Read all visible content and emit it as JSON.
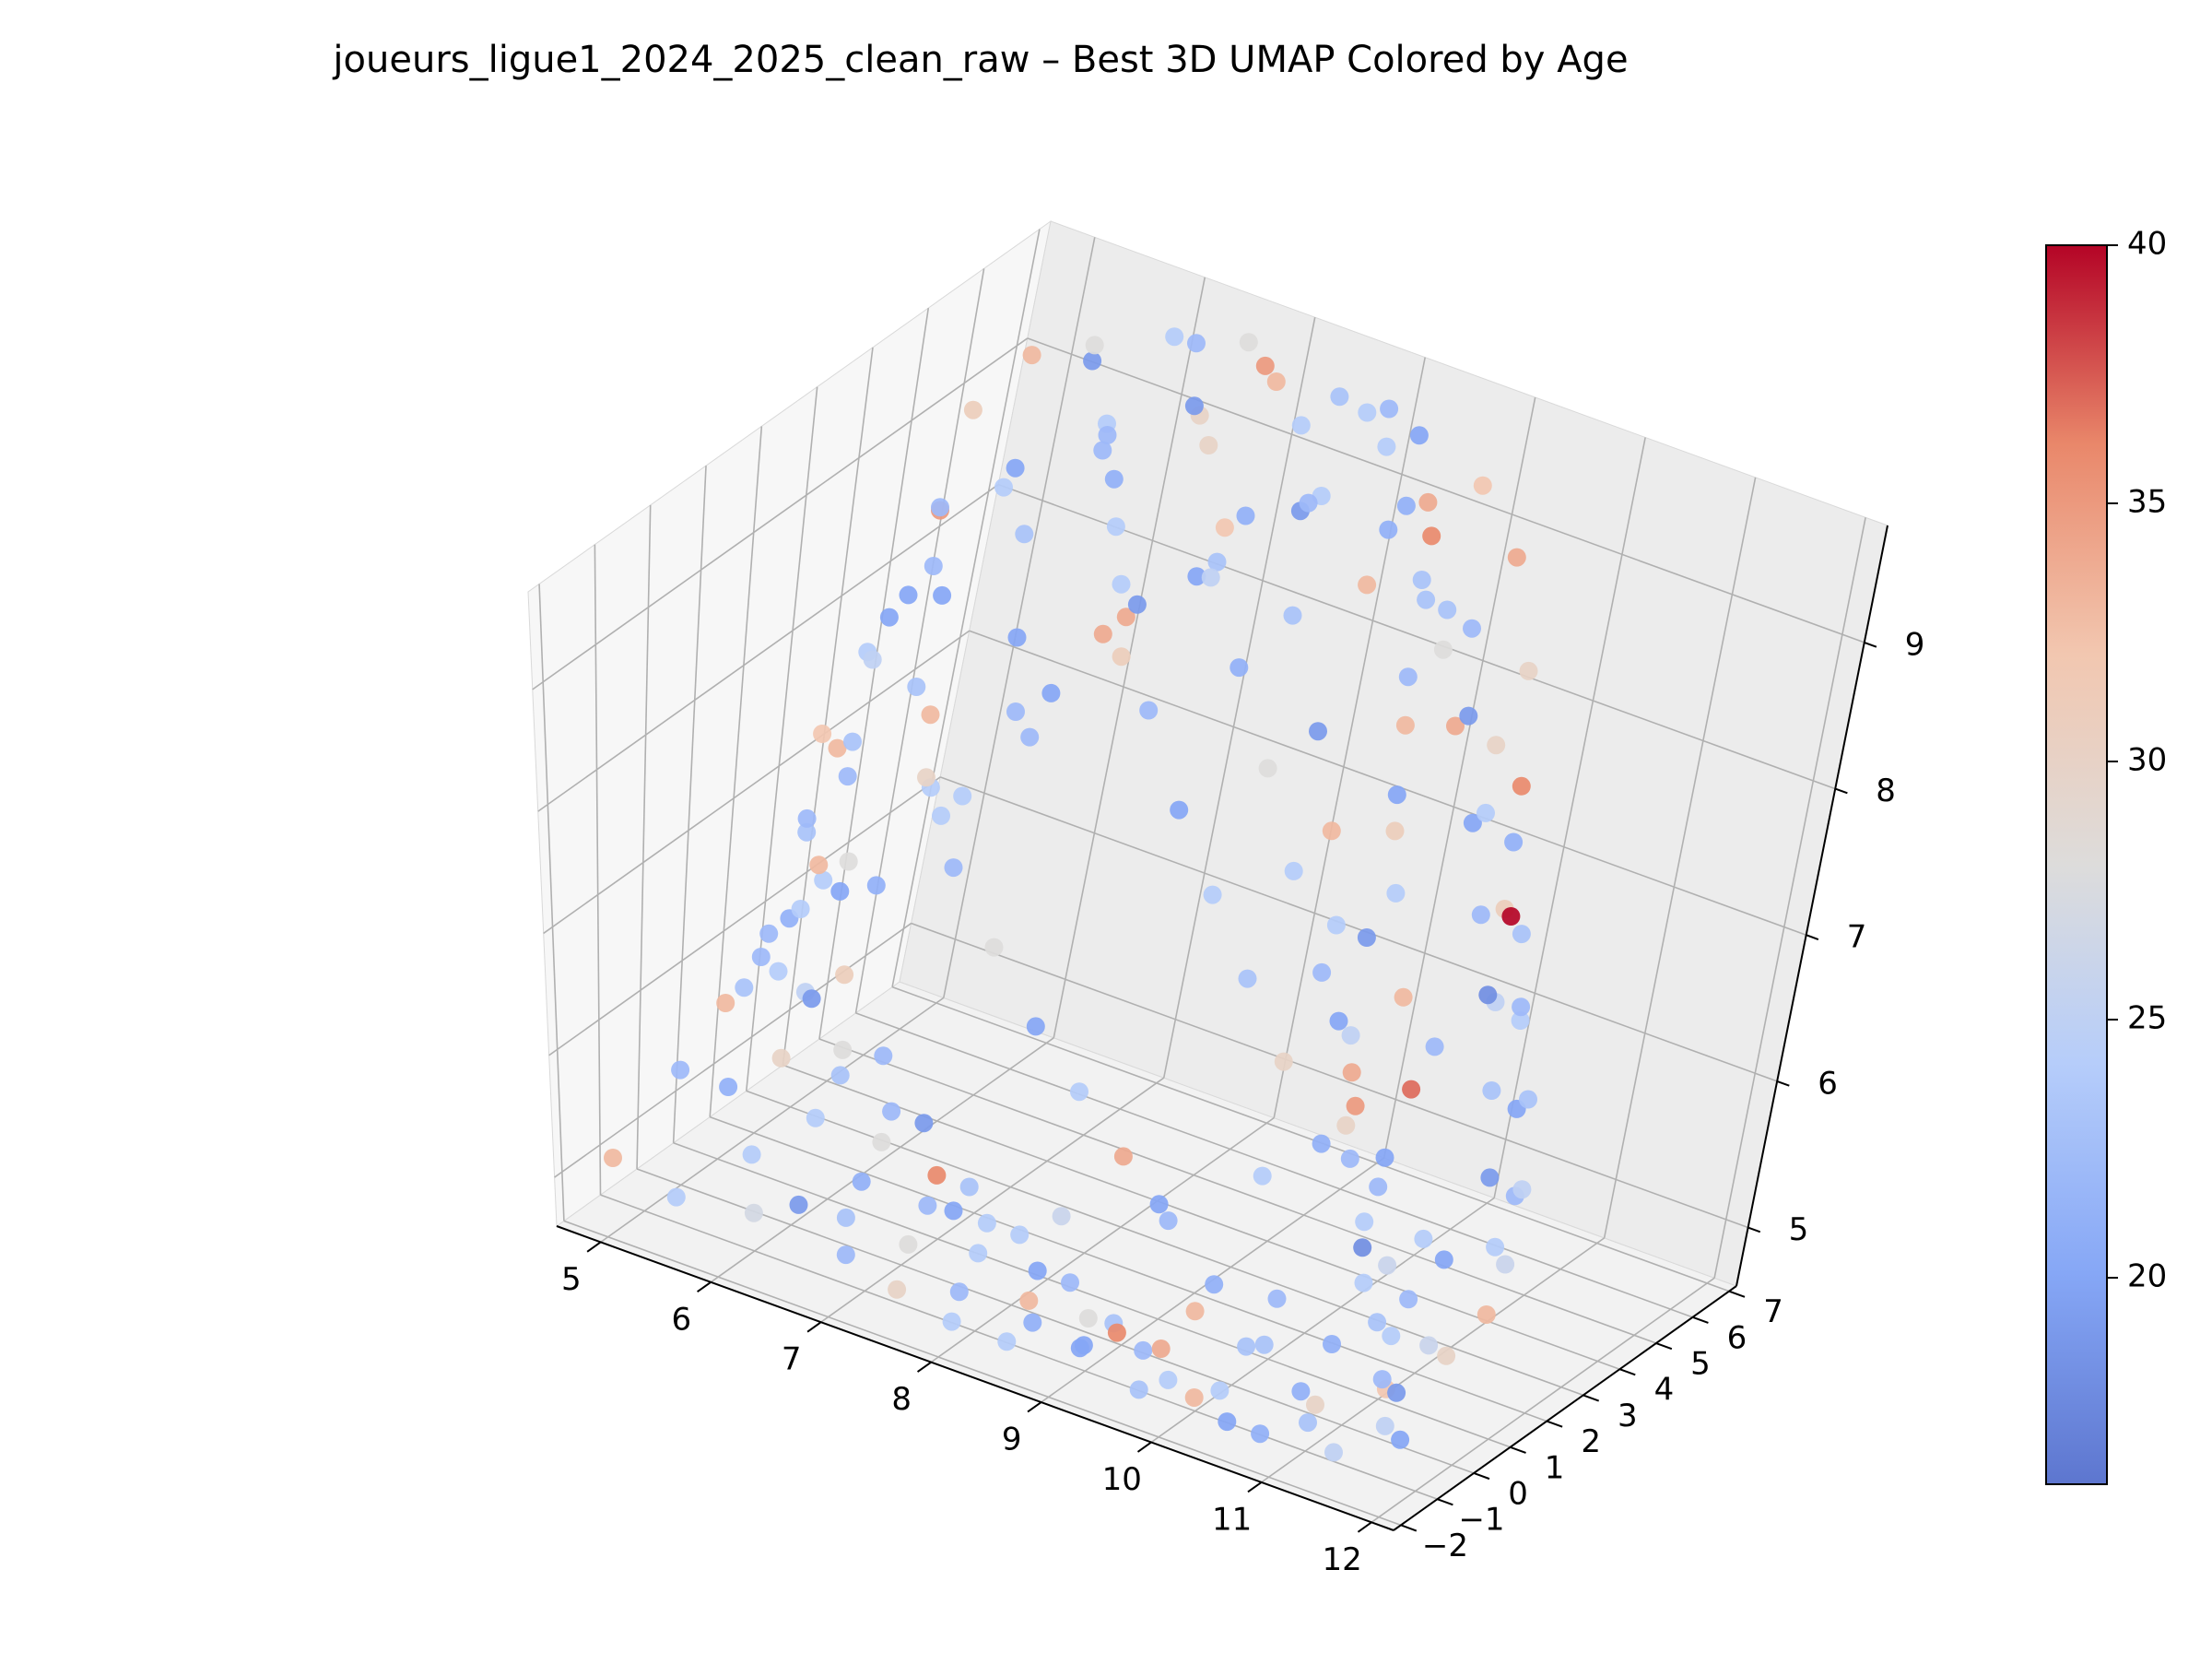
{
  "chart_data": {
    "type": "scatter",
    "projection": "3d",
    "title": "joueurs_ligue1_2024_2025_clean_raw – Best 3D UMAP Colored by Age",
    "xlabel": "",
    "ylabel": "",
    "zlabel": "",
    "x_ticks": [
      "5",
      "6",
      "7",
      "8",
      "9",
      "10",
      "11",
      "12"
    ],
    "y_ticks": [
      "−2",
      "−1",
      "0",
      "1",
      "2",
      "3",
      "4",
      "5",
      "6",
      "7"
    ],
    "z_ticks": [
      "5",
      "6",
      "7",
      "8",
      "9"
    ],
    "xlim": [
      4.6,
      12.2
    ],
    "ylim": [
      -2.2,
      7.2
    ],
    "zlim": [
      4.6,
      9.8
    ],
    "grid": true,
    "colormap": "coolwarm",
    "colorbar": {
      "min": 16,
      "max": 40,
      "ticks": [
        "20",
        "25",
        "30",
        "35",
        "40"
      ]
    },
    "points": [
      [
        5.2,
        4.8,
        9.3,
        31
      ],
      [
        5.4,
        3.9,
        8.9,
        22
      ],
      [
        5.6,
        2.6,
        8.5,
        20
      ],
      [
        5.9,
        1.3,
        8.0,
        23
      ],
      [
        6.1,
        0.2,
        7.4,
        33
      ],
      [
        6.0,
        -0.8,
        6.9,
        22
      ],
      [
        5.3,
        5.6,
        9.5,
        33
      ],
      [
        5.7,
        5.9,
        9.6,
        28
      ],
      [
        6.4,
        6.3,
        9.7,
        22
      ],
      [
        6.9,
        6.6,
        9.6,
        35
      ],
      [
        7.5,
        6.8,
        9.5,
        23
      ],
      [
        8.2,
        6.9,
        9.4,
        20
      ],
      [
        8.9,
        6.7,
        9.3,
        32
      ],
      [
        9.5,
        6.2,
        9.1,
        34
      ],
      [
        10.0,
        5.6,
        8.6,
        30
      ],
      [
        10.4,
        4.8,
        8.1,
        36
      ],
      [
        10.8,
        3.9,
        7.5,
        40
      ],
      [
        10.9,
        3.3,
        7.1,
        18
      ],
      [
        10.7,
        2.7,
        6.8,
        22
      ],
      [
        10.3,
        1.8,
        6.3,
        30
      ],
      [
        9.8,
        1.2,
        5.9,
        24
      ],
      [
        9.1,
        0.6,
        5.6,
        20
      ],
      [
        8.4,
        0.1,
        5.4,
        26
      ],
      [
        7.6,
        -0.4,
        5.3,
        20
      ],
      [
        6.8,
        -0.9,
        5.1,
        23
      ],
      [
        6.1,
        -1.3,
        5.0,
        27
      ],
      [
        5.5,
        -1.6,
        5.0,
        24
      ],
      [
        5.0,
        -1.8,
        5.2,
        33
      ],
      [
        5.3,
        -0.9,
        5.8,
        22
      ],
      [
        5.8,
        0.1,
        6.5,
        24
      ],
      [
        6.3,
        1.0,
        7.1,
        21
      ],
      [
        6.7,
        1.8,
        7.7,
        24
      ],
      [
        7.0,
        2.8,
        8.3,
        20
      ],
      [
        7.3,
        3.7,
        8.8,
        19
      ],
      [
        7.6,
        4.6,
        9.2,
        32
      ],
      [
        8.0,
        5.3,
        9.3,
        22
      ],
      [
        8.6,
        5.6,
        9.2,
        21
      ],
      [
        9.1,
        5.4,
        8.9,
        23
      ],
      [
        9.4,
        4.6,
        8.3,
        33
      ],
      [
        9.7,
        3.9,
        7.8,
        31
      ],
      [
        9.9,
        3.0,
        7.3,
        19
      ],
      [
        10.1,
        2.3,
        6.8,
        25
      ],
      [
        10.5,
        1.4,
        6.2,
        22
      ],
      [
        10.9,
        0.7,
        5.8,
        18
      ],
      [
        11.3,
        0.0,
        5.5,
        23
      ],
      [
        11.6,
        -0.6,
        5.2,
        32
      ],
      [
        11.9,
        -1.1,
        5.0,
        20
      ],
      [
        11.5,
        -1.7,
        4.9,
        25
      ],
      [
        10.9,
        -1.9,
        4.9,
        21
      ],
      [
        10.2,
        -1.6,
        4.9,
        33
      ],
      [
        9.6,
        -1.2,
        5.0,
        22
      ],
      [
        9.0,
        -0.9,
        5.0,
        28
      ],
      [
        8.4,
        -0.5,
        5.1,
        20
      ],
      [
        7.8,
        -0.1,
        5.2,
        24
      ],
      [
        7.2,
        0.3,
        5.3,
        36
      ],
      [
        6.6,
        0.8,
        5.5,
        22
      ],
      [
        6.0,
        1.2,
        5.7,
        28
      ],
      [
        5.5,
        1.6,
        5.9,
        25
      ],
      [
        5.1,
        2.2,
        6.2,
        21
      ],
      [
        4.9,
        3.0,
        6.6,
        23
      ],
      [
        4.8,
        3.8,
        7.0,
        33
      ],
      [
        4.7,
        4.5,
        7.5,
        24
      ],
      [
        4.9,
        5.2,
        8.0,
        22
      ],
      [
        5.2,
        5.9,
        8.6,
        20
      ],
      [
        5.8,
        6.2,
        9.0,
        24
      ],
      [
        6.5,
        6.4,
        9.2,
        30
      ],
      [
        7.2,
        6.0,
        8.8,
        21
      ],
      [
        7.9,
        5.6,
        8.4,
        23
      ],
      [
        8.5,
        5.0,
        7.9,
        19
      ],
      [
        9.0,
        4.3,
        7.5,
        33
      ],
      [
        9.4,
        3.6,
        7.1,
        24
      ],
      [
        9.8,
        2.8,
        6.7,
        20
      ],
      [
        10.3,
        2.0,
        6.4,
        35
      ],
      [
        10.8,
        1.3,
        6.1,
        22
      ],
      [
        11.2,
        0.5,
        5.8,
        26
      ],
      [
        11.5,
        -0.2,
        5.5,
        24
      ],
      [
        11.8,
        -0.9,
        5.3,
        19
      ],
      [
        11.2,
        -1.3,
        5.1,
        30
      ],
      [
        10.6,
        -0.9,
        5.3,
        23
      ],
      [
        10.0,
        -0.5,
        5.5,
        21
      ],
      [
        9.4,
        0.0,
        5.7,
        22
      ],
      [
        8.8,
        0.5,
        5.9,
        34
      ],
      [
        8.2,
        1.0,
        6.1,
        24
      ],
      [
        7.6,
        1.5,
        6.3,
        20
      ],
      [
        7.0,
        2.0,
        6.6,
        28
      ],
      [
        6.4,
        2.5,
        6.9,
        22
      ],
      [
        5.9,
        3.0,
        7.3,
        30
      ],
      [
        5.5,
        3.6,
        7.7,
        23
      ],
      [
        5.1,
        4.2,
        8.1,
        20
      ],
      [
        5.0,
        4.9,
        8.5,
        35
      ],
      [
        5.4,
        5.2,
        8.7,
        24
      ],
      [
        6.0,
        5.7,
        9.0,
        22
      ],
      [
        6.6,
        6.0,
        9.4,
        19
      ],
      [
        7.1,
        6.4,
        9.6,
        33
      ],
      [
        7.8,
        6.7,
        9.5,
        24
      ],
      [
        8.4,
        6.4,
        9.1,
        21
      ],
      [
        8.8,
        6.0,
        8.8,
        23
      ],
      [
        9.2,
        5.7,
        8.5,
        28
      ],
      [
        9.6,
        5.2,
        8.2,
        34
      ],
      [
        10.1,
        4.6,
        7.8,
        20
      ],
      [
        10.5,
        4.0,
        7.4,
        22
      ],
      [
        10.9,
        3.5,
        7.0,
        25
      ],
      [
        11.2,
        2.8,
        6.6,
        23
      ],
      [
        11.5,
        2.1,
        6.2,
        19
      ],
      [
        11.8,
        1.5,
        5.9,
        24
      ],
      [
        12.0,
        0.8,
        5.6,
        33
      ],
      [
        11.7,
        0.2,
        5.4,
        26
      ],
      [
        11.0,
        -0.3,
        5.3,
        21
      ],
      [
        10.4,
        -0.8,
        5.2,
        23
      ],
      [
        9.8,
        -1.3,
        5.1,
        34
      ],
      [
        9.2,
        -1.7,
        5.0,
        20
      ],
      [
        8.6,
        -1.9,
        4.9,
        24
      ],
      [
        8.0,
        -1.4,
        5.0,
        22
      ],
      [
        7.4,
        -1.0,
        5.1,
        28
      ],
      [
        6.8,
        -0.5,
        5.3,
        21
      ],
      [
        6.2,
        0.0,
        5.5,
        24
      ],
      [
        5.7,
        0.5,
        5.7,
        30
      ],
      [
        5.2,
        0.9,
        6.0,
        23
      ],
      [
        5.6,
        2.0,
        6.6,
        20
      ],
      [
        6.1,
        2.9,
        7.1,
        24
      ],
      [
        6.5,
        3.7,
        7.6,
        22
      ],
      [
        6.9,
        4.5,
        8.1,
        31
      ],
      [
        7.3,
        5.2,
        8.6,
        25
      ],
      [
        7.7,
        5.9,
        9.0,
        19
      ],
      [
        8.1,
        6.5,
        9.4,
        24
      ],
      [
        8.7,
        6.3,
        9.0,
        36
      ],
      [
        9.3,
        6.0,
        8.6,
        22
      ],
      [
        9.9,
        5.4,
        8.1,
        30
      ],
      [
        10.4,
        4.8,
        7.7,
        21
      ],
      [
        10.8,
        4.2,
        7.3,
        23
      ],
      [
        11.1,
        3.6,
        6.9,
        24
      ],
      [
        11.4,
        2.9,
        6.5,
        20
      ],
      [
        11.7,
        2.2,
        6.1,
        22
      ],
      [
        11.9,
        1.5,
        5.8,
        26
      ],
      [
        10.6,
        2.5,
        6.5,
        37
      ],
      [
        10.2,
        3.2,
        6.9,
        33
      ],
      [
        9.7,
        4.1,
        7.3,
        24
      ],
      [
        9.3,
        4.9,
        7.7,
        20
      ],
      [
        8.9,
        5.8,
        8.2,
        22
      ],
      [
        8.3,
        6.1,
        8.6,
        33
      ],
      [
        7.7,
        6.3,
        9.0,
        24
      ],
      [
        7.1,
        5.4,
        8.5,
        20
      ],
      [
        6.6,
        4.8,
        8.1,
        34
      ],
      [
        6.2,
        4.1,
        7.6,
        22
      ],
      [
        5.8,
        3.4,
        7.1,
        24
      ],
      [
        5.4,
        2.7,
        6.6,
        28
      ],
      [
        5.0,
        2.0,
        6.1,
        22
      ],
      [
        4.9,
        1.3,
        5.7,
        33
      ],
      [
        5.2,
        0.6,
        5.3,
        21
      ],
      [
        5.7,
        -0.2,
        5.1,
        24
      ],
      [
        6.3,
        -0.7,
        5.0,
        19
      ],
      [
        6.9,
        -1.2,
        4.9,
        22
      ],
      [
        7.5,
        -1.6,
        4.9,
        30
      ],
      [
        8.1,
        -1.9,
        4.9,
        24
      ],
      [
        8.7,
        -1.5,
        5.0,
        21
      ],
      [
        9.3,
        -1.1,
        5.1,
        23
      ],
      [
        9.9,
        -0.7,
        5.3,
        33
      ],
      [
        10.5,
        -0.3,
        5.5,
        22
      ],
      [
        11.1,
        0.2,
        5.7,
        24
      ],
      [
        11.6,
        0.8,
        5.9,
        20
      ],
      [
        11.9,
        1.8,
        6.3,
        25
      ],
      [
        11.6,
        2.6,
        6.7,
        23
      ],
      [
        11.2,
        3.3,
        7.1,
        22
      ],
      [
        10.7,
        4.0,
        7.5,
        31
      ],
      [
        10.2,
        4.6,
        7.9,
        24
      ],
      [
        9.7,
        5.2,
        8.3,
        19
      ],
      [
        9.1,
        5.9,
        8.7,
        23
      ],
      [
        8.5,
        6.6,
        9.1,
        34
      ],
      [
        7.9,
        6.9,
        9.5,
        22
      ],
      [
        7.3,
        6.6,
        9.3,
        24
      ],
      [
        6.7,
        6.2,
        9.1,
        30
      ],
      [
        6.1,
        5.8,
        8.8,
        21
      ],
      [
        5.6,
        5.3,
        8.4,
        23
      ],
      [
        5.2,
        4.7,
        8.0,
        20
      ],
      [
        4.9,
        4.1,
        7.6,
        25
      ],
      [
        4.8,
        3.4,
        7.2,
        32
      ],
      [
        5.0,
        2.7,
        6.8,
        22
      ],
      [
        5.3,
        1.9,
        6.4,
        24
      ],
      [
        5.7,
        1.2,
        6.0,
        19
      ],
      [
        6.2,
        0.6,
        5.7,
        23
      ],
      [
        6.8,
        0.0,
        5.5,
        28
      ],
      [
        7.4,
        -0.5,
        5.3,
        22
      ],
      [
        8.0,
        -0.9,
        5.2,
        24
      ],
      [
        8.6,
        -1.3,
        5.1,
        33
      ],
      [
        9.2,
        -1.6,
        5.0,
        20
      ],
      [
        9.8,
        -1.9,
        4.9,
        23
      ],
      [
        10.4,
        -1.5,
        5.0,
        24
      ],
      [
        11.0,
        -1.1,
        5.1,
        21
      ],
      [
        11.6,
        -0.7,
        5.3,
        22
      ],
      [
        12.0,
        -0.2,
        5.5,
        30
      ],
      [
        11.3,
        1.1,
        5.9,
        24
      ],
      [
        10.7,
        1.7,
        6.2,
        20
      ],
      [
        10.1,
        2.4,
        6.5,
        34
      ],
      [
        9.5,
        3.1,
        6.9,
        22
      ],
      [
        8.9,
        3.8,
        7.3,
        24
      ],
      [
        8.3,
        4.5,
        7.7,
        28
      ],
      [
        7.7,
        5.1,
        8.1,
        21
      ],
      [
        7.1,
        5.8,
        8.5,
        23
      ],
      [
        6.5,
        5.3,
        8.3,
        24
      ],
      [
        5.9,
        4.7,
        7.9,
        20
      ],
      [
        5.5,
        4.0,
        7.4,
        33
      ],
      [
        5.1,
        3.3,
        7.0,
        22
      ],
      [
        5.3,
        2.4,
        6.5,
        24
      ],
      [
        5.8,
        1.7,
        6.1,
        31
      ],
      [
        6.4,
        1.1,
        5.8,
        22
      ],
      [
        7.0,
        0.5,
        5.6,
        19
      ],
      [
        7.6,
        0.0,
        5.4,
        23
      ],
      [
        8.2,
        -0.4,
        5.3,
        24
      ],
      [
        8.8,
        -0.8,
        5.2,
        22
      ],
      [
        9.4,
        -1.3,
        5.1,
        36
      ],
      [
        10.0,
        -1.7,
        5.0,
        24
      ],
      [
        10.6,
        -1.9,
        4.9,
        20
      ],
      [
        11.2,
        -1.5,
        5.0,
        23
      ],
      [
        11.8,
        -1.2,
        5.1,
        25
      ],
      [
        11.4,
        0.5,
        5.6,
        22
      ],
      [
        10.8,
        1.0,
        5.9,
        24
      ],
      [
        10.2,
        1.5,
        6.2,
        21
      ],
      [
        9.6,
        2.1,
        6.5,
        30
      ],
      [
        9.0,
        2.7,
        6.8,
        23
      ],
      [
        8.4,
        3.3,
        7.1,
        24
      ],
      [
        7.8,
        3.9,
        7.4,
        20
      ],
      [
        7.2,
        4.5,
        7.8,
        22
      ],
      [
        6.7,
        5.0,
        8.2,
        34
      ],
      [
        6.3,
        5.5,
        8.6,
        24
      ],
      [
        5.9,
        6.0,
        9.0,
        22
      ],
      [
        5.5,
        6.4,
        9.3,
        19
      ],
      [
        6.0,
        6.8,
        9.5,
        24
      ],
      [
        6.6,
        6.9,
        9.6,
        28
      ]
    ]
  }
}
